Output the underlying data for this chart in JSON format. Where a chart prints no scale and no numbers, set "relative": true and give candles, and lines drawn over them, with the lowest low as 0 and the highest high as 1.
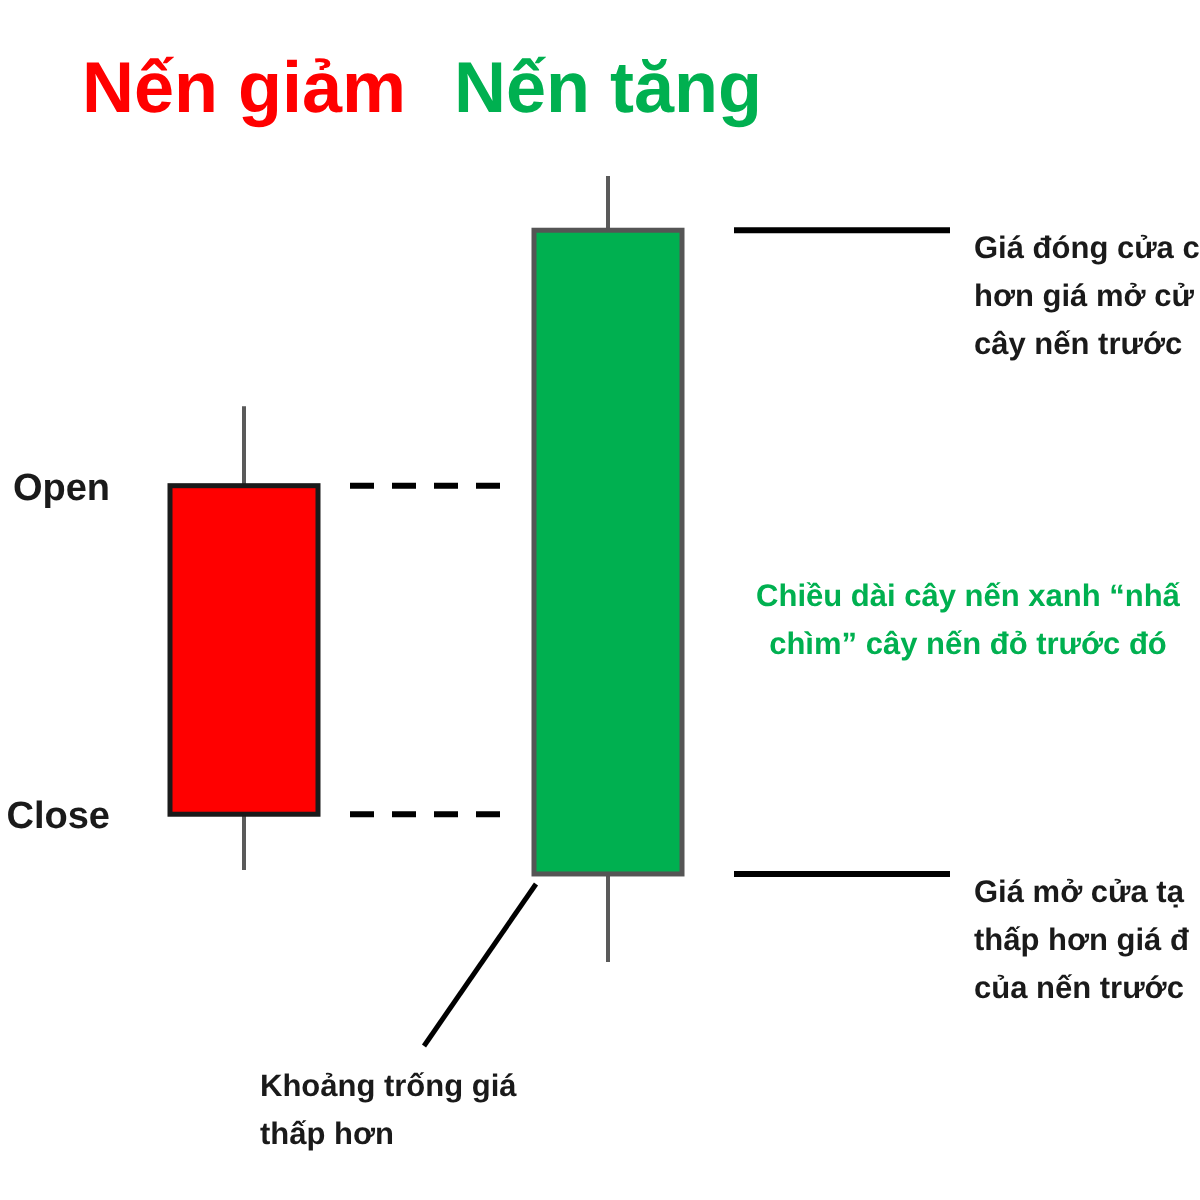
{
  "chart_data": {
    "type": "candlestick",
    "relative": true,
    "categories": [
      "Nến giảm",
      "Nến tăng"
    ],
    "ohlc": [
      [
        0.606,
        0.707,
        0.117,
        0.188
      ],
      [
        0.112,
        1,
        0,
        0.931
      ]
    ],
    "colors": [
      "#ff0000",
      "#00b050"
    ],
    "ref_lines": [
      {
        "axis": "y",
        "value": 0.606,
        "line_style": "dashed",
        "color": "#000000"
      },
      {
        "axis": "y",
        "value": 0.188,
        "line_style": "dashed",
        "color": "#000000"
      }
    ],
    "annotations": [
      "Giá đóng cửa c\nhơn giá mở cử\ncây nến trước",
      "Chiều dài cây nến xanh “nhấ\nchìm” cây nến đỏ trước đó",
      "Giá mở cửa tạ\nthấp hơn giá đ\ncủa nến trước",
      "Khoảng trống giá\nthấp hơn",
      "Open",
      "Close"
    ]
  }
}
